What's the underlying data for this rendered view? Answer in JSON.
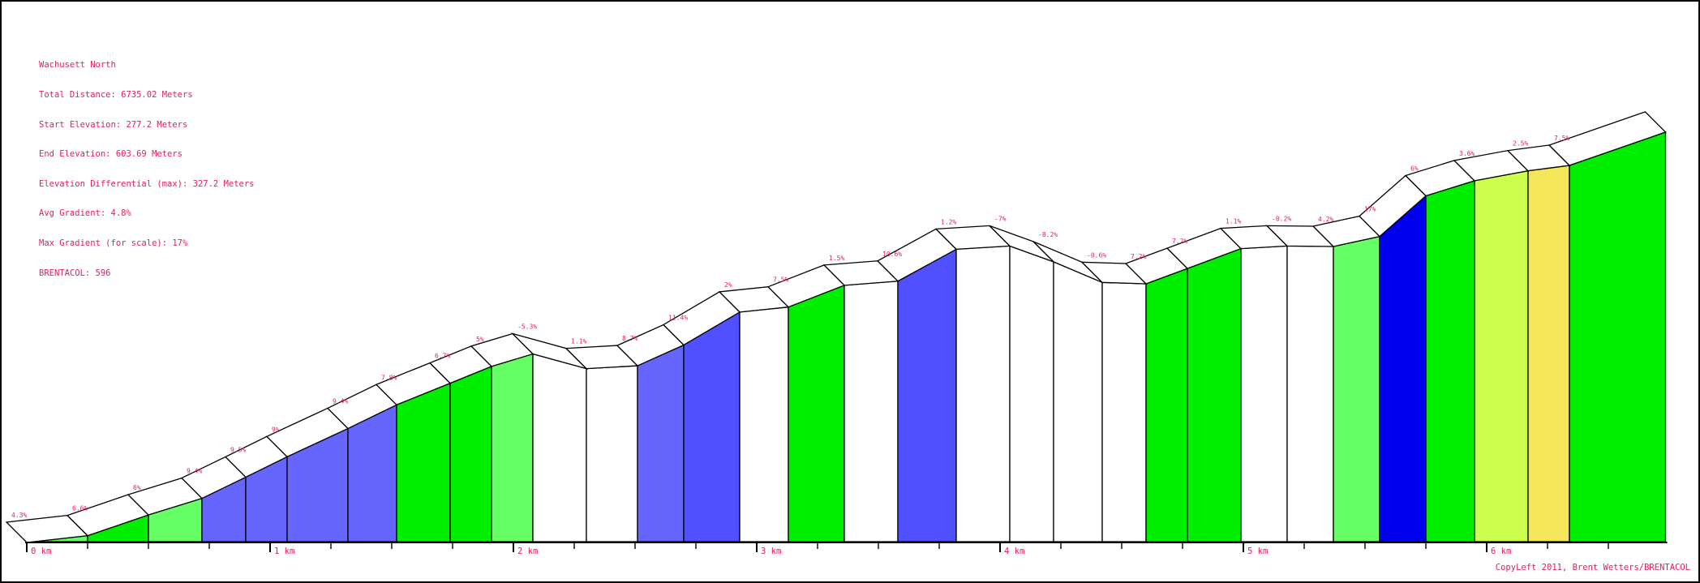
{
  "info": {
    "lines": [
      "Wachusett North",
      "Total Distance: 6735.02 Meters",
      "Start Elevation: 277.2 Meters",
      "End Elevation: 603.69 Meters",
      "Elevation Differential (max): 327.2 Meters",
      "Avg Gradient: 4.8%",
      "Max Gradient (for scale): 17%",
      "BRENTACOL: 596"
    ]
  },
  "copyright": "CopyLeft 2011, Brent Wetters/BRENTACOL",
  "colors": {
    "white": "#ffffff",
    "light_green": "#66ff66",
    "green": "#00ee00",
    "periwinkle": "#6666ff",
    "blue_violet": "#5050ff",
    "blue": "#0000ee",
    "yellow_green": "#ccff4d",
    "yellow": "#f5e65a",
    "label": "#e0205e"
  },
  "chart_data": {
    "type": "area",
    "title": "Wachusett North",
    "xlabel": "",
    "ylabel": "",
    "x_unit": "km",
    "x_ticks": [
      "0 km",
      "1 km",
      "2 km",
      "3 km",
      "4 km",
      "5 km",
      "6 km"
    ],
    "xlim": [
      0,
      6.735
    ],
    "ylim": [
      277.2,
      603.7
    ],
    "segments": [
      {
        "x0": 0.0,
        "x1": 0.25,
        "gradient": "4.3%",
        "color": "light_green"
      },
      {
        "x0": 0.25,
        "x1": 0.5,
        "gradient": "6.6%",
        "color": "green"
      },
      {
        "x0": 0.5,
        "x1": 0.72,
        "gradient": "6%",
        "color": "light_green"
      },
      {
        "x0": 0.72,
        "x1": 0.9,
        "gradient": "9.4%",
        "color": "periwinkle"
      },
      {
        "x0": 0.9,
        "x1": 1.07,
        "gradient": "9.5%",
        "color": "periwinkle"
      },
      {
        "x0": 1.07,
        "x1": 1.32,
        "gradient": "9%",
        "color": "periwinkle"
      },
      {
        "x0": 1.32,
        "x1": 1.52,
        "gradient": "9.4%",
        "color": "periwinkle"
      },
      {
        "x0": 1.52,
        "x1": 1.74,
        "gradient": "7.8%",
        "color": "green"
      },
      {
        "x0": 1.74,
        "x1": 1.91,
        "gradient": "6.7%",
        "color": "green"
      },
      {
        "x0": 1.91,
        "x1": 2.08,
        "gradient": "5%",
        "color": "light_green"
      },
      {
        "x0": 2.08,
        "x1": 2.3,
        "gradient": "-5.3%",
        "color": "white"
      },
      {
        "x0": 2.3,
        "x1": 2.51,
        "gradient": "1.1%",
        "color": "white"
      },
      {
        "x0": 2.51,
        "x1": 2.7,
        "gradient": "8.7%",
        "color": "periwinkle"
      },
      {
        "x0": 2.7,
        "x1": 2.93,
        "gradient": "11.4%",
        "color": "blue_violet"
      },
      {
        "x0": 2.93,
        "x1": 3.13,
        "gradient": "2%",
        "color": "white"
      },
      {
        "x0": 3.13,
        "x1": 3.36,
        "gradient": "7.5%",
        "color": "green"
      },
      {
        "x0": 3.36,
        "x1": 3.58,
        "gradient": "1.5%",
        "color": "white"
      },
      {
        "x0": 3.58,
        "x1": 3.82,
        "gradient": "10.6%",
        "color": "blue_violet"
      },
      {
        "x0": 3.82,
        "x1": 4.04,
        "gradient": "1.2%",
        "color": "white"
      },
      {
        "x0": 4.04,
        "x1": 4.22,
        "gradient": "-7%",
        "color": "white"
      },
      {
        "x0": 4.22,
        "x1": 4.42,
        "gradient": "-8.2%",
        "color": "white"
      },
      {
        "x0": 4.42,
        "x1": 4.6,
        "gradient": "-0.6%",
        "color": "white"
      },
      {
        "x0": 4.6,
        "x1": 4.77,
        "gradient": "7.2%",
        "color": "green"
      },
      {
        "x0": 4.77,
        "x1": 4.99,
        "gradient": "7.2%",
        "color": "green"
      },
      {
        "x0": 4.99,
        "x1": 5.18,
        "gradient": "1.1%",
        "color": "white"
      },
      {
        "x0": 5.18,
        "x1": 5.37,
        "gradient": "-0.2%",
        "color": "white"
      },
      {
        "x0": 5.37,
        "x1": 5.56,
        "gradient": "4.2%",
        "color": "light_green"
      },
      {
        "x0": 5.56,
        "x1": 5.75,
        "gradient": "17%",
        "color": "blue"
      },
      {
        "x0": 5.75,
        "x1": 5.95,
        "gradient": "6%",
        "color": "green"
      },
      {
        "x0": 5.95,
        "x1": 6.17,
        "gradient": "3.6%",
        "color": "yellow_green"
      },
      {
        "x0": 6.17,
        "x1": 6.34,
        "gradient": "2.5%",
        "color": "yellow"
      },
      {
        "x0": 6.34,
        "x1": 6.735,
        "gradient": "7.5%",
        "color": "green"
      }
    ],
    "elevation_profile": [
      277.2,
      282.6,
      299.1,
      312.3,
      329.2,
      345.4,
      367.9,
      386.7,
      403.9,
      417.3,
      427.2,
      415.5,
      417.8,
      434.3,
      460.5,
      464.5,
      481.8,
      485.1,
      510.5,
      513.1,
      500.5,
      484.1,
      483.0,
      495.2,
      511.0,
      513.1,
      512.7,
      520.7,
      553.0,
      565.0,
      572.9,
      577.2,
      603.7
    ]
  }
}
